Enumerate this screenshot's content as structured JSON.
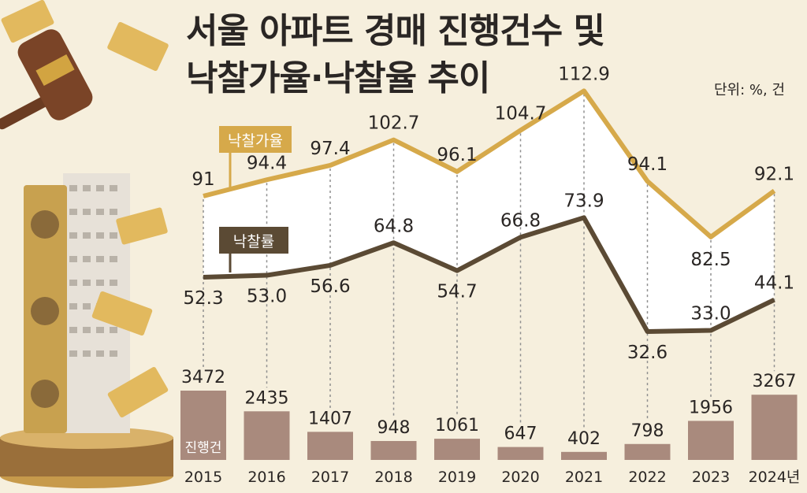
{
  "title_line1": "서울 아파트 경매 진행건수 및",
  "title_line2": "낙찰가율·낙찰율 추이",
  "unit_label": "단위: %, 건",
  "colors": {
    "background": "#f6efdd",
    "price_ratio_line": "#d6a94a",
    "sale_rate_line": "#5b4a34",
    "bars": "#a98a7d",
    "label_price_ratio_bg": "#d6a94a",
    "label_sale_rate_bg": "#5b4a34"
  },
  "chart_data": {
    "type": "line+bar",
    "categories": [
      "2015",
      "2016",
      "2017",
      "2018",
      "2019",
      "2020",
      "2021",
      "2022",
      "2023",
      "2024년"
    ],
    "series": [
      {
        "name": "낙찰가율",
        "kind": "line",
        "values": [
          91,
          94.4,
          97.4,
          102.7,
          96.1,
          104.7,
          112.9,
          94.1,
          82.5,
          92.1
        ],
        "labels": [
          "91",
          "94.4",
          "97.4",
          "102.7",
          "96.1",
          "104.7",
          "112.9",
          "94.1",
          "82.5",
          "92.1"
        ]
      },
      {
        "name": "낙찰률",
        "kind": "line",
        "values": [
          52.3,
          53.0,
          56.6,
          64.8,
          54.7,
          66.8,
          73.9,
          32.6,
          33.0,
          44.1
        ],
        "labels": [
          "52.3",
          "53.0",
          "56.6",
          "64.8",
          "54.7",
          "66.8",
          "73.9",
          "32.6",
          "33.0",
          "44.1"
        ]
      },
      {
        "name": "진행건",
        "kind": "bar",
        "values": [
          3472,
          2435,
          1407,
          948,
          1061,
          647,
          402,
          798,
          1956,
          3267
        ],
        "labels": [
          "3472",
          "2435",
          "1407",
          "948",
          "1061",
          "647",
          "402",
          "798",
          "1956",
          "3267"
        ]
      }
    ],
    "legend": {
      "price_ratio": "낙찰가율",
      "sale_rate": "낙찰률",
      "bar_series": "진행건"
    }
  }
}
